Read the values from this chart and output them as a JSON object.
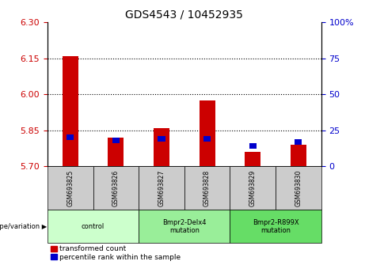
{
  "title": "GDS4543 / 10452935",
  "samples": [
    "GSM693825",
    "GSM693826",
    "GSM693827",
    "GSM693828",
    "GSM693829",
    "GSM693830"
  ],
  "red_values": [
    6.16,
    5.82,
    5.86,
    5.975,
    5.76,
    5.79
  ],
  "blue_values": [
    20,
    18,
    19,
    19,
    14,
    17
  ],
  "ylim_left": [
    5.7,
    6.3
  ],
  "ylim_right": [
    0,
    100
  ],
  "yticks_left": [
    5.7,
    5.85,
    6.0,
    6.15,
    6.3
  ],
  "yticks_right": [
    0,
    25,
    50,
    75,
    100
  ],
  "ytick_labels_right": [
    "0",
    "25",
    "50",
    "75",
    "100%"
  ],
  "hlines": [
    5.85,
    6.0,
    6.15
  ],
  "groups": [
    {
      "label": "control",
      "indices": [
        0,
        1
      ],
      "color": "#ccffcc"
    },
    {
      "label": "Bmpr2-Delx4\nmutation",
      "indices": [
        2,
        3
      ],
      "color": "#99ee99"
    },
    {
      "label": "Bmpr2-R899X\nmutation",
      "indices": [
        4,
        5
      ],
      "color": "#66dd66"
    }
  ],
  "red_color": "#cc0000",
  "blue_color": "#0000cc",
  "bar_width": 0.35,
  "baseline": 5.7,
  "legend_red": "transformed count",
  "legend_blue": "percentile rank within the sample",
  "xlabel_group": "genotype/variation",
  "bg_plot": "#ffffff",
  "sample_box_color": "#cccccc",
  "group_colors": [
    "#ccffcc",
    "#99ee99",
    "#66dd66"
  ]
}
